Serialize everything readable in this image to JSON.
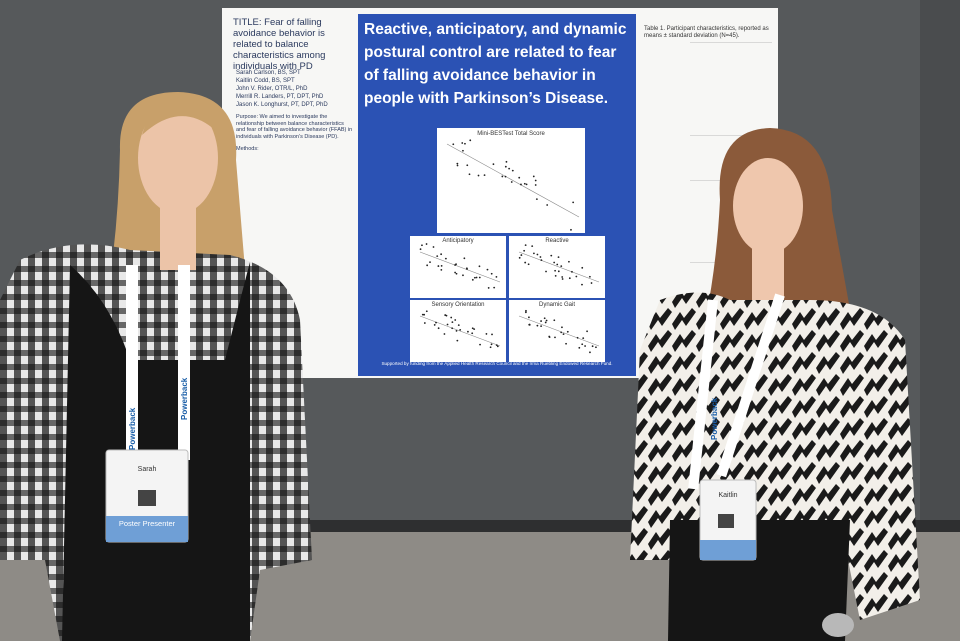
{
  "poster": {
    "headline": "Reactive, anticipatory, and dynamic postural control are related to fear of falling avoidance behavior in people with Parkinson’s Disease.",
    "title": "TITLE: Fear of falling avoidance behavior is related to balance characteristics among individuals with PD",
    "authors": [
      "Sarah Carlson, BS, SPT",
      "Kaitlin Codd, BS, SPT",
      "John V. Rider, OTR/L, PhD",
      "Merrill R. Landers, PT, DPT, PhD",
      "Jason K. Longhurst, PT, DPT, PhD"
    ],
    "purpose": "Purpose: We aimed to investigate the relationship between balance characteristics and fear of falling avoidance behavior (FFAB) in individuals with Parkinson’s Disease (PD).",
    "methods_heading": "Methods:",
    "table1_title": "Table 1. Participant characteristics, reported as means ± standard deviation (N=45).",
    "plots": [
      "Mini-BESTest Total Score",
      "Anticipatory",
      "Reactive",
      "Sensory Orientation",
      "Dynamic Gait"
    ],
    "funding": "Supported by funding from the Applied Health Research Council and the Irma Ruebling Endowed Research Fund."
  },
  "badges": [
    {
      "brand": "Powerback",
      "name": "Sarah",
      "role": "Poster Presenter"
    },
    {
      "brand": "Powerback",
      "name": "Kaitlin"
    }
  ]
}
